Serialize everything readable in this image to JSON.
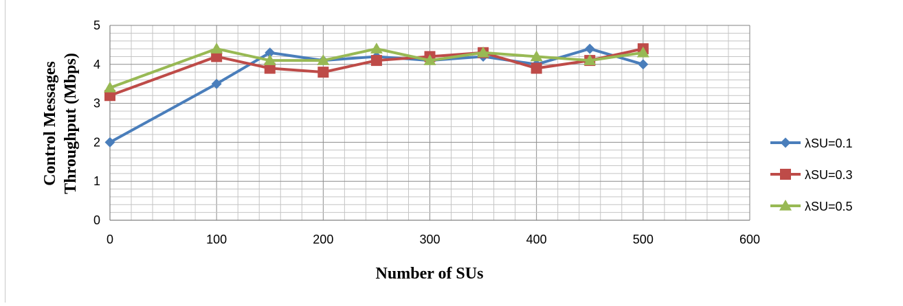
{
  "chart_data": {
    "type": "line",
    "title": "",
    "xlabel": "Number of SUs",
    "ylabel": [
      "Control Messages",
      "Throughput (Mbps)"
    ],
    "xlim": [
      0,
      600
    ],
    "ylim": [
      0,
      5
    ],
    "x_ticks": [
      0,
      100,
      200,
      300,
      400,
      500,
      600
    ],
    "y_ticks": [
      0,
      1,
      2,
      3,
      4,
      5
    ],
    "grid": {
      "major": true,
      "minor": true
    },
    "legend_position": "right",
    "x": [
      0,
      100,
      150,
      200,
      250,
      300,
      350,
      400,
      450,
      500
    ],
    "series": [
      {
        "name": "λSU=0.1",
        "color": "#4a7ebb",
        "marker": "diamond",
        "values": [
          2.0,
          3.5,
          4.3,
          4.1,
          4.2,
          4.1,
          4.2,
          4.0,
          4.4,
          4.0
        ]
      },
      {
        "name": "λSU=0.3",
        "color": "#be4b48",
        "marker": "square",
        "values": [
          3.2,
          4.2,
          3.9,
          3.8,
          4.1,
          4.2,
          4.3,
          3.9,
          4.1,
          4.4
        ]
      },
      {
        "name": "λSU=0.5",
        "color": "#98b954",
        "marker": "triangle",
        "values": [
          3.4,
          4.4,
          4.1,
          4.1,
          4.4,
          4.1,
          4.3,
          4.2,
          4.1,
          4.3
        ]
      }
    ]
  }
}
